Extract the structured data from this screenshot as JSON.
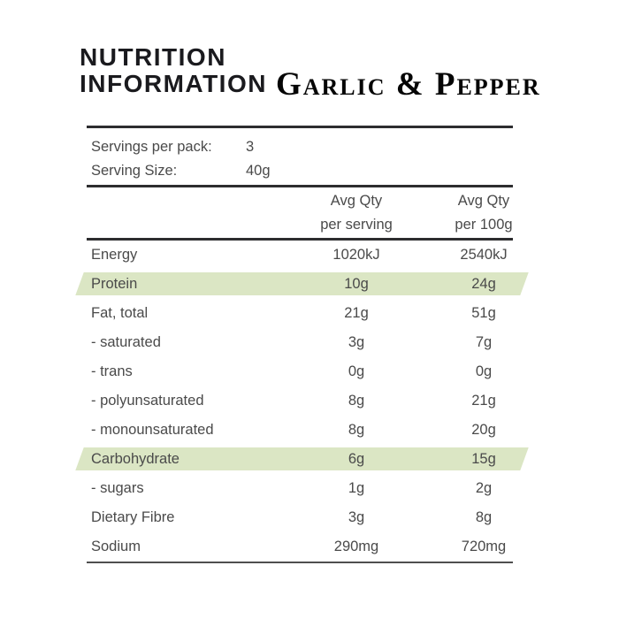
{
  "title": {
    "line1": "NUTRITION",
    "line2": "INFORMATION",
    "flavor": "Garlic & Pepper"
  },
  "serving_info": {
    "rows": [
      {
        "label": "Servings per pack:",
        "value": "3"
      },
      {
        "label": "Serving Size:",
        "value": "40g"
      }
    ]
  },
  "table": {
    "col1_header": {
      "line1": "Avg Qty",
      "line2": "per serving"
    },
    "col2_header": {
      "line1": "Avg Qty",
      "line2": "per 100g"
    },
    "rows": [
      {
        "label": "Energy",
        "per_serving": "1020kJ",
        "per_100g": "2540kJ",
        "highlight": false
      },
      {
        "label": "Protein",
        "per_serving": "10g",
        "per_100g": "24g",
        "highlight": true
      },
      {
        "label": "Fat, total",
        "per_serving": "21g",
        "per_100g": "51g",
        "highlight": false
      },
      {
        "label": "- saturated",
        "per_serving": "3g",
        "per_100g": "7g",
        "highlight": false
      },
      {
        "label": "- trans",
        "per_serving": "0g",
        "per_100g": "0g",
        "highlight": false
      },
      {
        "label": "- polyunsaturated",
        "per_serving": "8g",
        "per_100g": "21g",
        "highlight": false
      },
      {
        "label": "- monounsaturated",
        "per_serving": "8g",
        "per_100g": "20g",
        "highlight": false
      },
      {
        "label": "Carbohydrate",
        "per_serving": "6g",
        "per_100g": "15g",
        "highlight": true
      },
      {
        "label": "- sugars",
        "per_serving": "1g",
        "per_100g": "2g",
        "highlight": false
      },
      {
        "label": "Dietary Fibre",
        "per_serving": "3g",
        "per_100g": "8g",
        "highlight": false
      },
      {
        "label": "Sodium",
        "per_serving": "290mg",
        "per_100g": "720mg",
        "highlight": false
      }
    ]
  },
  "colors": {
    "highlight_green": "#dbe6c4",
    "rule_dark": "#2d2d2f",
    "rule_light": "#4f4f4f",
    "body_text": "#4a4a4a",
    "title_text": "#1a1a1e"
  }
}
